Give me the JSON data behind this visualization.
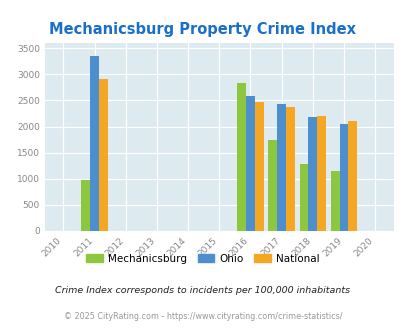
{
  "title": "Mechanicsburg Property Crime Index",
  "years": [
    2011,
    2016,
    2017,
    2018,
    2019
  ],
  "mechanicsburg": [
    975,
    2825,
    1750,
    1275,
    1150
  ],
  "ohio": [
    3350,
    2575,
    2425,
    2175,
    2050
  ],
  "national": [
    2900,
    2475,
    2375,
    2200,
    2100
  ],
  "bar_colors": {
    "mechanicsburg": "#8dc63f",
    "ohio": "#4d8fcc",
    "national": "#f5a623"
  },
  "xlim": [
    2009.4,
    2020.6
  ],
  "ylim": [
    0,
    3600
  ],
  "yticks": [
    0,
    500,
    1000,
    1500,
    2000,
    2500,
    3000,
    3500
  ],
  "xticks": [
    2010,
    2011,
    2012,
    2013,
    2014,
    2015,
    2016,
    2017,
    2018,
    2019,
    2020
  ],
  "bg_color": "#ddeaf0",
  "title_color": "#1a70c8",
  "footnote1": "Crime Index corresponds to incidents per 100,000 inhabitants",
  "footnote2": "© 2025 CityRating.com - https://www.cityrating.com/crime-statistics/",
  "bar_width": 0.28
}
